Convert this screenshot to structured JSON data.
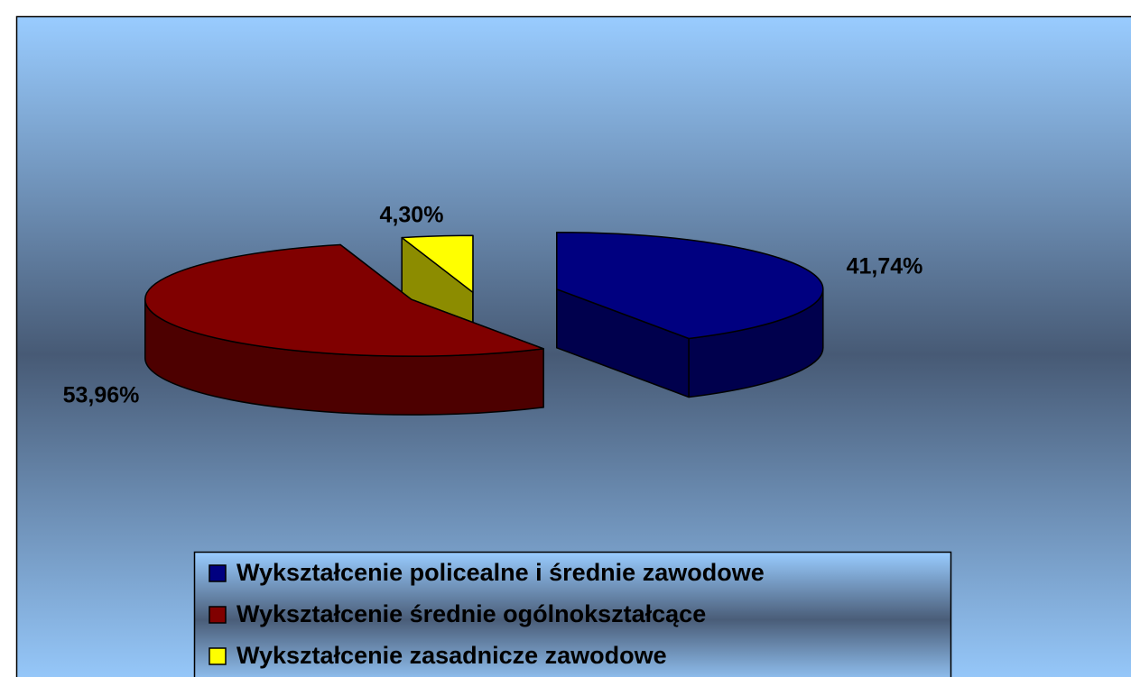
{
  "chart_data": {
    "type": "pie",
    "categories": [
      "Wykształcenie policealne i średnie zawodowe",
      "Wykształcenie średnie ogólnokształcące",
      "Wykształcenie zasadnicze zawodowe"
    ],
    "values": [
      41.74,
      53.96,
      4.3
    ],
    "value_labels": [
      "41,74%",
      "53,96%",
      "4,30%"
    ],
    "colors": [
      "#000080",
      "#800000",
      "#ffff00"
    ],
    "legend": "bottom"
  }
}
